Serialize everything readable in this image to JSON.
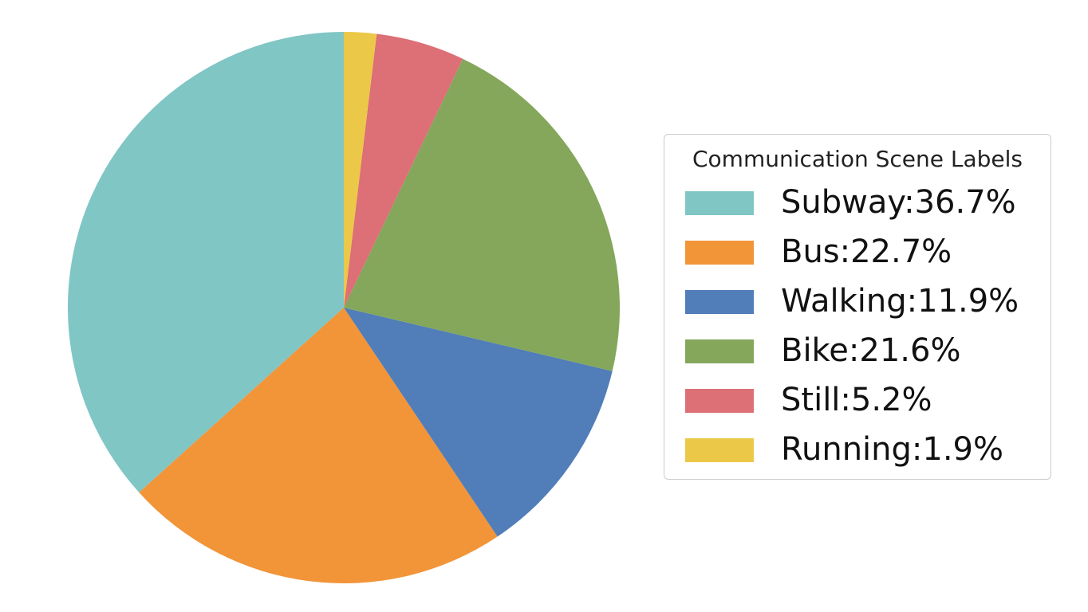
{
  "chart_data": {
    "type": "pie",
    "start_angle": "top, counterclockwise",
    "slices": [
      {
        "label": "Subway:36.7%",
        "name": "Subway",
        "value": 36.7,
        "color": "#80c6c5"
      },
      {
        "label": "Bus:22.7%",
        "name": "Bus",
        "value": 22.7,
        "color": "#f29438"
      },
      {
        "label": "Walking:11.9%",
        "name": "Walking",
        "value": 11.9,
        "color": "#517db8"
      },
      {
        "label": "Bike:21.6%",
        "name": "Bike",
        "value": 21.6,
        "color": "#84a75b"
      },
      {
        "label": "Still:5.2%",
        "name": "Still",
        "value": 5.2,
        "color": "#dd6f76"
      },
      {
        "label": "Running:1.9%",
        "name": "Running",
        "value": 1.9,
        "color": "#ebc847"
      }
    ],
    "legend": {
      "title": "Communication Scene Labels",
      "placement": "right"
    }
  }
}
